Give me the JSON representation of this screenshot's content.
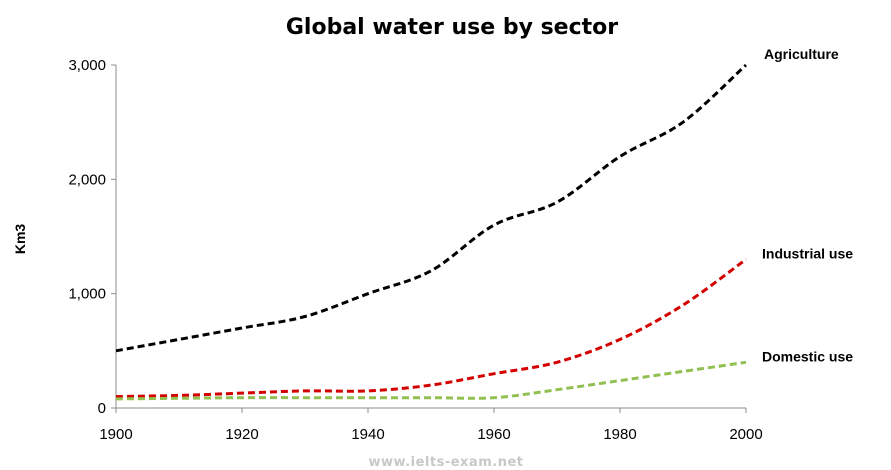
{
  "chart_data": {
    "type": "line",
    "title": "Global water use by sector",
    "xlabel": "",
    "ylabel": "Km3",
    "xlim": [
      1900,
      2000
    ],
    "ylim": [
      0,
      3000
    ],
    "x_ticks": [
      "1900",
      "1920",
      "1940",
      "1960",
      "1980",
      "2000"
    ],
    "y_ticks": [
      "0",
      "1,000",
      "2,000",
      "3,000"
    ],
    "grid": false,
    "legend": "labels at line ends (right)",
    "series": [
      {
        "name": "Agriculture",
        "color": "#000000",
        "style": "dashed",
        "x": [
          1900,
          1910,
          1920,
          1930,
          1940,
          1950,
          1960,
          1970,
          1980,
          1990,
          2000
        ],
        "values": [
          500,
          600,
          700,
          800,
          1000,
          1200,
          1600,
          1800,
          2200,
          2500,
          3000
        ]
      },
      {
        "name": "Industrial use",
        "color": "#d40000",
        "style": "dashed",
        "x": [
          1900,
          1910,
          1920,
          1930,
          1940,
          1950,
          1960,
          1970,
          1980,
          1990,
          2000
        ],
        "values": [
          100,
          110,
          130,
          150,
          150,
          200,
          300,
          400,
          600,
          900,
          1300
        ]
      },
      {
        "name": "Domestic use",
        "color": "#92c050",
        "style": "dashed",
        "x": [
          1900,
          1910,
          1920,
          1930,
          1940,
          1950,
          1960,
          1970,
          1980,
          1990,
          2000
        ],
        "values": [
          80,
          85,
          90,
          90,
          90,
          90,
          90,
          160,
          240,
          320,
          400
        ]
      }
    ]
  },
  "watermark": "www.ielts-exam.net"
}
